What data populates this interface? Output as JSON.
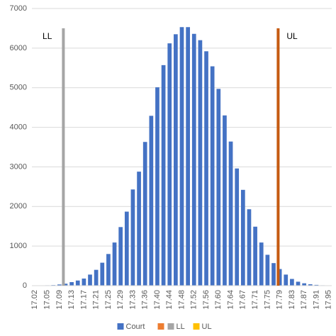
{
  "chart_data": {
    "type": "bar",
    "categories": [
      "17.02",
      null,
      "17.05",
      null,
      "17.09",
      null,
      "17.13",
      null,
      "17.17",
      null,
      "17.21",
      null,
      "17.25",
      null,
      "17.29",
      null,
      "17.33",
      null,
      "17.36",
      null,
      "17.40",
      null,
      "17.44",
      null,
      "17.48",
      null,
      "17.52",
      null,
      "17.56",
      null,
      "17.60",
      null,
      "17.64",
      null,
      "17.67",
      null,
      "17.71",
      null,
      "17.75",
      null,
      "17.79",
      null,
      "17.83",
      null,
      "17.87",
      null,
      "17.91",
      null,
      "17.95"
    ],
    "series": [
      {
        "name": "Court",
        "color": "#4472c4",
        "values": [
          3,
          5,
          10,
          15,
          30,
          50,
          90,
          130,
          180,
          280,
          400,
          580,
          800,
          1090,
          1480,
          1870,
          2430,
          2880,
          3630,
          4290,
          5010,
          5570,
          6120,
          6350,
          6530,
          6530,
          6360,
          6200,
          5920,
          5540,
          4970,
          4300,
          3640,
          2960,
          2420,
          1930,
          1490,
          1090,
          780,
          570,
          420,
          280,
          170,
          100,
          60,
          35,
          20,
          10,
          5
        ]
      }
    ],
    "limits": [
      {
        "label": "LL",
        "x": 17.11,
        "top": 6500,
        "color": "#a5a5a5"
      },
      {
        "label": "UL",
        "x": 17.79,
        "top": 6500,
        "color": "#c55a11"
      }
    ],
    "legend_extra": [
      {
        "name": null,
        "color": "#ed7d31"
      },
      {
        "name": "LL",
        "color": "#a5a5a5"
      },
      {
        "name": "UL",
        "color": "#ffc000"
      }
    ],
    "ylim": [
      0,
      7000
    ],
    "yticks": [
      0,
      1000,
      2000,
      3000,
      4000,
      5000,
      6000,
      7000
    ],
    "grid": true
  }
}
